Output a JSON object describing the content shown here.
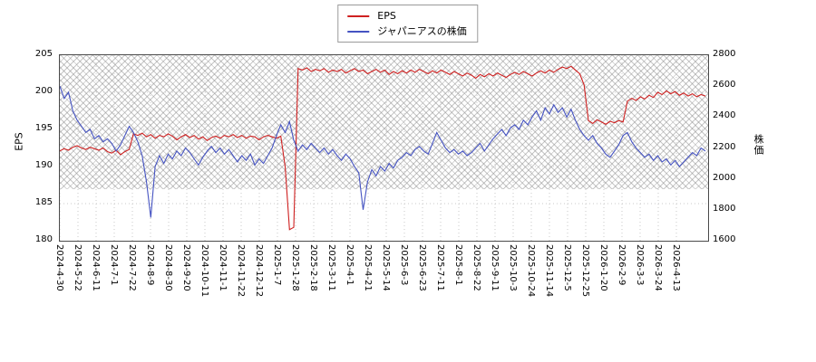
{
  "chart_data": {
    "type": "line",
    "title": "",
    "legend_position": "top-center",
    "grid": "dotted",
    "hatch_region": "upper band of plot area cross-hatched",
    "x_tick_labels": [
      "2024-4-30",
      "2024-5-22",
      "2024-6-11",
      "2024-7-1",
      "2024-7-22",
      "2024-8-9",
      "2024-8-30",
      "2024-9-20",
      "2024-10-11",
      "2024-11-1",
      "2024-11-22",
      "2024-12-12",
      "2025-1-7",
      "2025-1-28",
      "2025-2-18",
      "2025-3-11",
      "2025-4-1",
      "2025-4-21",
      "2025-5-14",
      "2025-6-3",
      "2025-6-23",
      "2025-7-11",
      "2025-8-1",
      "2025-8-22",
      "2025-9-11",
      "2025-10-3",
      "2025-10-24",
      "2025-11-14",
      "2025-12-5",
      "2025-12-25",
      "2026-1-20",
      "2026-2-9",
      "2026-3-3",
      "2026-3-24",
      "2026-4-13"
    ],
    "left_axis": {
      "label": "EPS",
      "range": [
        180,
        205
      ],
      "ticks": [
        180,
        185,
        190,
        195,
        200,
        205
      ]
    },
    "right_axis": {
      "label": "株価",
      "range": [
        1600,
        2800
      ],
      "ticks": [
        1600,
        1800,
        2000,
        2200,
        2400,
        2600,
        2800
      ]
    },
    "series": [
      {
        "name": "EPS",
        "axis": "left",
        "color": "#cf2020",
        "values": [
          192.1,
          192.4,
          192.2,
          192.6,
          192.8,
          192.5,
          192.3,
          192.6,
          192.4,
          192.2,
          192.5,
          192.0,
          191.8,
          192.2,
          191.6,
          192.0,
          192.3,
          194.4,
          194.2,
          194.5,
          194.0,
          194.3,
          193.8,
          194.2,
          194.0,
          194.4,
          194.1,
          193.6,
          194.0,
          194.3,
          193.9,
          194.2,
          193.7,
          194.0,
          193.5,
          193.9,
          194.1,
          193.8,
          194.2,
          194.0,
          194.3,
          193.9,
          194.2,
          193.8,
          194.1,
          194.0,
          193.6,
          194.0,
          194.2,
          194.0,
          193.8,
          194.1,
          190.0,
          181.5,
          181.8,
          203.2,
          203.0,
          203.3,
          202.8,
          203.1,
          202.9,
          203.2,
          202.7,
          203.0,
          202.8,
          203.1,
          202.6,
          202.9,
          203.2,
          202.8,
          203.0,
          202.5,
          202.8,
          203.1,
          202.7,
          203.0,
          202.4,
          202.8,
          202.5,
          202.9,
          202.6,
          203.0,
          202.7,
          203.1,
          202.8,
          202.5,
          202.9,
          202.6,
          203.0,
          202.7,
          202.4,
          202.8,
          202.5,
          202.2,
          202.6,
          202.3,
          201.9,
          202.4,
          202.1,
          202.5,
          202.2,
          202.6,
          202.3,
          202.0,
          202.4,
          202.7,
          202.4,
          202.8,
          202.5,
          202.2,
          202.6,
          202.9,
          202.6,
          203.0,
          202.7,
          203.1,
          203.4,
          203.2,
          203.5,
          203.0,
          202.5,
          201.0,
          196.2,
          195.8,
          196.3,
          196.0,
          195.7,
          196.1,
          195.9,
          196.2,
          196.0,
          198.8,
          199.2,
          198.9,
          199.4,
          199.1,
          199.6,
          199.3,
          200.0,
          199.7,
          200.2,
          199.8,
          200.1,
          199.6,
          199.9,
          199.5,
          199.8,
          199.4,
          199.7,
          199.5
        ]
      },
      {
        "name": "ジャパニアスの株価",
        "axis": "right",
        "color": "#4553c2",
        "values": [
          2600,
          2520,
          2560,
          2440,
          2380,
          2340,
          2300,
          2320,
          2260,
          2280,
          2240,
          2260,
          2230,
          2180,
          2220,
          2280,
          2340,
          2300,
          2240,
          2150,
          1980,
          1750,
          2080,
          2150,
          2100,
          2160,
          2130,
          2180,
          2150,
          2200,
          2170,
          2130,
          2090,
          2140,
          2180,
          2210,
          2170,
          2200,
          2160,
          2190,
          2150,
          2110,
          2150,
          2120,
          2160,
          2090,
          2130,
          2100,
          2150,
          2200,
          2280,
          2350,
          2300,
          2370,
          2250,
          2180,
          2220,
          2190,
          2230,
          2200,
          2170,
          2200,
          2160,
          2190,
          2150,
          2120,
          2160,
          2130,
          2080,
          2040,
          1800,
          1980,
          2060,
          2020,
          2080,
          2050,
          2100,
          2070,
          2120,
          2140,
          2170,
          2150,
          2190,
          2210,
          2180,
          2160,
          2230,
          2300,
          2250,
          2200,
          2170,
          2190,
          2160,
          2180,
          2150,
          2170,
          2200,
          2230,
          2180,
          2220,
          2260,
          2290,
          2320,
          2280,
          2330,
          2350,
          2320,
          2380,
          2350,
          2400,
          2440,
          2380,
          2460,
          2420,
          2480,
          2430,
          2460,
          2400,
          2450,
          2380,
          2320,
          2280,
          2250,
          2280,
          2230,
          2200,
          2160,
          2140,
          2180,
          2220,
          2280,
          2300,
          2240,
          2200,
          2170,
          2140,
          2160,
          2120,
          2150,
          2110,
          2130,
          2090,
          2120,
          2080,
          2110,
          2140,
          2170,
          2150,
          2200,
          2180
        ]
      }
    ]
  }
}
